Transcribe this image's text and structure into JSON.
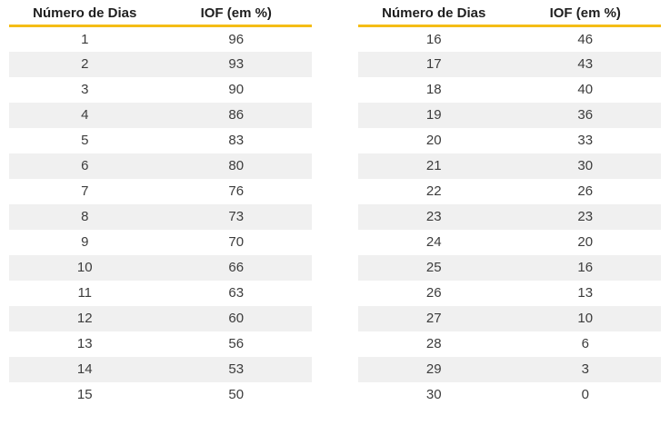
{
  "colors": {
    "accent_underline": "#F5BD16",
    "row_stripe": "#F0F0F0",
    "header_text": "#1F1F1F",
    "cell_text": "#3C3C3C",
    "background": "#FFFFFF"
  },
  "chart_data": [
    {
      "type": "table",
      "columns": [
        "Número de Dias",
        "IOF (em %)"
      ],
      "rows": [
        [
          1,
          96
        ],
        [
          2,
          93
        ],
        [
          3,
          90
        ],
        [
          4,
          86
        ],
        [
          5,
          83
        ],
        [
          6,
          80
        ],
        [
          7,
          76
        ],
        [
          8,
          73
        ],
        [
          9,
          70
        ],
        [
          10,
          66
        ],
        [
          11,
          63
        ],
        [
          12,
          60
        ],
        [
          13,
          56
        ],
        [
          14,
          53
        ],
        [
          15,
          50
        ]
      ]
    },
    {
      "type": "table",
      "columns": [
        "Número de Dias",
        "IOF (em %)"
      ],
      "rows": [
        [
          16,
          46
        ],
        [
          17,
          43
        ],
        [
          18,
          40
        ],
        [
          19,
          36
        ],
        [
          20,
          33
        ],
        [
          21,
          30
        ],
        [
          22,
          26
        ],
        [
          23,
          23
        ],
        [
          24,
          20
        ],
        [
          25,
          16
        ],
        [
          26,
          13
        ],
        [
          27,
          10
        ],
        [
          28,
          6
        ],
        [
          29,
          3
        ],
        [
          30,
          0
        ]
      ]
    }
  ]
}
